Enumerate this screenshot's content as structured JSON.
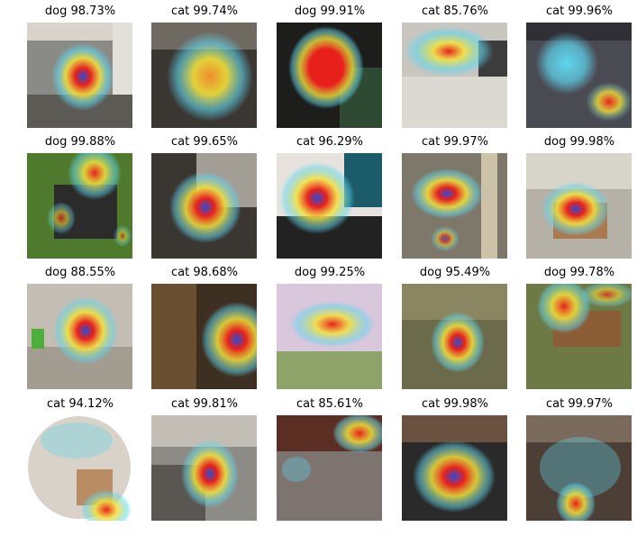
{
  "figure": {
    "items": [
      {
        "label": "dog 98.73%",
        "icon": "gradcam-heatmap-image"
      },
      {
        "label": "cat 99.74%",
        "icon": "gradcam-heatmap-image"
      },
      {
        "label": "dog 99.91%",
        "icon": "gradcam-heatmap-image"
      },
      {
        "label": "cat 85.76%",
        "icon": "gradcam-heatmap-image"
      },
      {
        "label": "cat 99.96%",
        "icon": "gradcam-heatmap-image"
      },
      {
        "label": "dog 99.88%",
        "icon": "gradcam-heatmap-image"
      },
      {
        "label": "cat 99.65%",
        "icon": "gradcam-heatmap-image"
      },
      {
        "label": "cat 96.29%",
        "icon": "gradcam-heatmap-image"
      },
      {
        "label": "cat 99.97%",
        "icon": "gradcam-heatmap-image"
      },
      {
        "label": "dog 99.98%",
        "icon": "gradcam-heatmap-image"
      },
      {
        "label": "dog 88.55%",
        "icon": "gradcam-heatmap-image"
      },
      {
        "label": "cat 98.68%",
        "icon": "gradcam-heatmap-image"
      },
      {
        "label": "dog 99.25%",
        "icon": "gradcam-heatmap-image"
      },
      {
        "label": "dog 95.49%",
        "icon": "gradcam-heatmap-image"
      },
      {
        "label": "dog 99.78%",
        "icon": "gradcam-heatmap-image"
      },
      {
        "label": "cat 94.12%",
        "icon": "gradcam-heatmap-image"
      },
      {
        "label": "cat 99.81%",
        "icon": "gradcam-heatmap-image"
      },
      {
        "label": "cat 85.61%",
        "icon": "gradcam-heatmap-image"
      },
      {
        "label": "cat 99.98%",
        "icon": "gradcam-heatmap-image"
      },
      {
        "label": "cat 99.97%",
        "icon": "gradcam-heatmap-image"
      }
    ],
    "colors": {
      "heat_red": "#e8201c",
      "heat_yellow": "#f4e23a",
      "heat_cyan": "#5fd6ef",
      "heat_blue": "#2a4dd6"
    }
  }
}
